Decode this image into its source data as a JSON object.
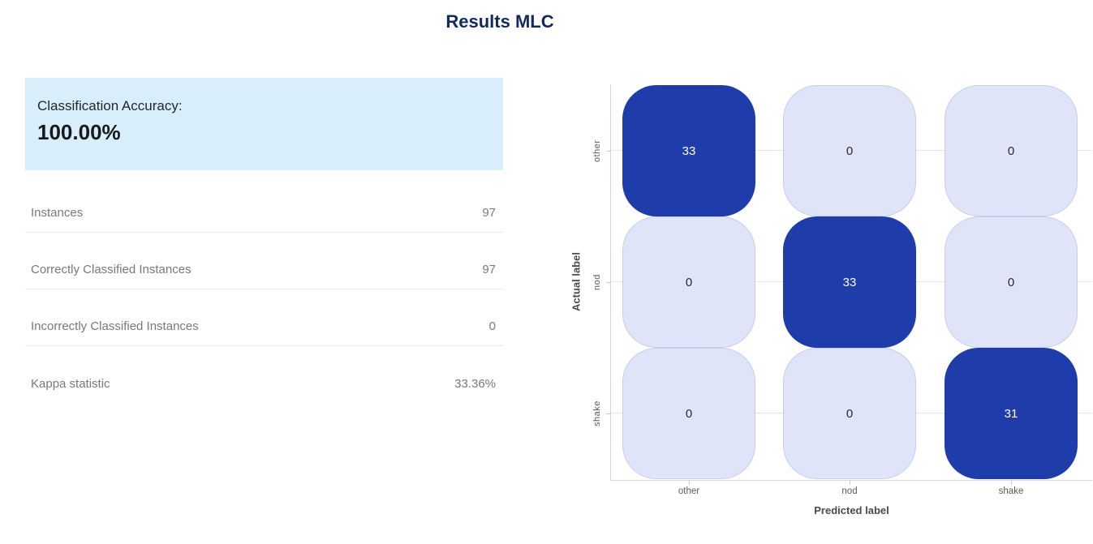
{
  "page_title": "Results MLC",
  "accuracy_card": {
    "label": "Classification Accuracy:",
    "value": "100.00%",
    "background_color": "#d9eefb"
  },
  "stats": [
    {
      "label": "Instances",
      "value": "97"
    },
    {
      "label": "Correctly Classified Instances",
      "value": "97"
    },
    {
      "label": "Incorrectly Classified Instances",
      "value": "0"
    },
    {
      "label": "Kappa statistic",
      "value": "33.36%"
    }
  ],
  "chart_data": {
    "type": "heatmap",
    "title": "",
    "xlabel": "Predicted label",
    "ylabel": "Actual label",
    "x_categories": [
      "other",
      "nod",
      "shake"
    ],
    "y_categories": [
      "other",
      "nod",
      "shake"
    ],
    "matrix": [
      [
        33,
        0,
        0
      ],
      [
        0,
        33,
        0
      ],
      [
        0,
        0,
        31
      ]
    ],
    "grid": true,
    "legend_position": "none",
    "colors": {
      "high_cell": "#1e3caa",
      "low_cell": "#dfe4f9",
      "low_cell_border": "#c7cdec",
      "high_cell_text": "#ffffff",
      "low_cell_text": "#26282b",
      "axis_line": "#d6d6d6",
      "gridline": "#e4e4e4",
      "tick_label": "#5b5b5b",
      "axis_title": "#4a4a4a"
    }
  },
  "theme": {
    "title_color": "#132a5c",
    "stat_text_color": "#75797e",
    "divider_color": "#e7e8ea"
  }
}
